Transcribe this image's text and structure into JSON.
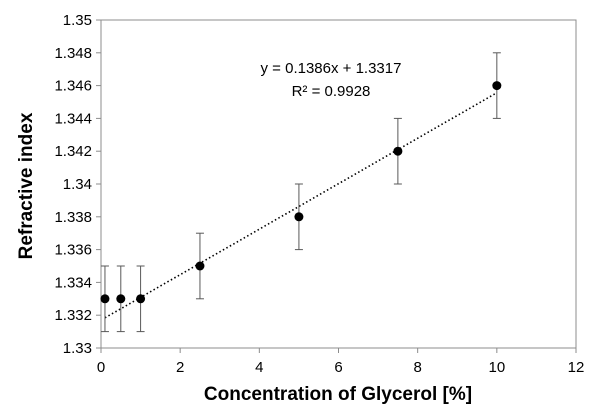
{
  "chart_data": {
    "type": "scatter",
    "xlabel": "Concentration of Glycerol [%]",
    "ylabel": "Refractive index",
    "xlim": [
      0,
      12
    ],
    "ylim": [
      1.33,
      1.35
    ],
    "x_ticks": [
      "0",
      "2",
      "4",
      "6",
      "8",
      "10",
      "12"
    ],
    "y_ticks": [
      "1.33",
      "1.332",
      "1.334",
      "1.336",
      "1.338",
      "1.34",
      "1.342",
      "1.344",
      "1.346",
      "1.348",
      "1.35"
    ],
    "grid": false,
    "legend": "none",
    "points": [
      {
        "x": 0.1,
        "y": 1.333,
        "err": 0.002
      },
      {
        "x": 0.5,
        "y": 1.333,
        "err": 0.002
      },
      {
        "x": 1.0,
        "y": 1.333,
        "err": 0.002
      },
      {
        "x": 2.5,
        "y": 1.335,
        "err": 0.002
      },
      {
        "x": 5.0,
        "y": 1.338,
        "err": 0.002
      },
      {
        "x": 7.5,
        "y": 1.342,
        "err": 0.002
      },
      {
        "x": 10.0,
        "y": 1.346,
        "err": 0.002
      }
    ],
    "trendline": {
      "type": "linear",
      "style": "dotted",
      "slope": 0.0013863,
      "intercept": 1.3317,
      "x_range": [
        0.1,
        10.0
      ],
      "equation_label": "y = 0.1386x + 1.3317",
      "r2_label": "R² = 0.9928"
    },
    "colors": {
      "marker": "#000000",
      "errorbar": "#595959",
      "axis": "#8c8c8c"
    }
  }
}
